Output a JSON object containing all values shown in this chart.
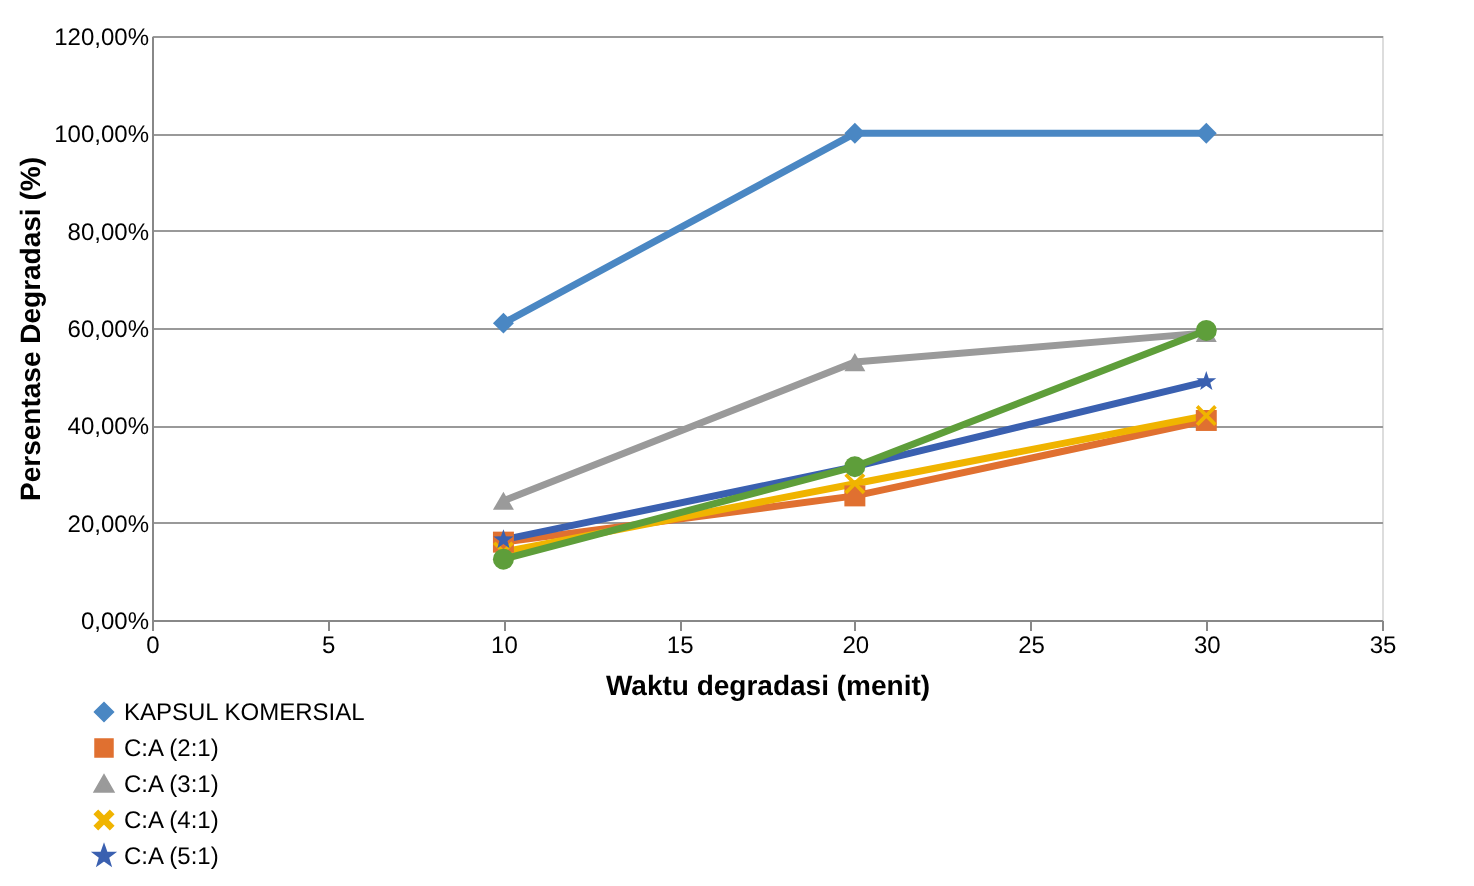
{
  "chart_data": {
    "type": "line",
    "xlabel": "Waktu degradasi (menit)",
    "ylabel": "Persentase Degradasi (%)",
    "x": [
      10,
      20,
      30
    ],
    "series": [
      {
        "name": "KAPSUL KOMERSIAL",
        "color": "#4a87c3",
        "marker": "diamond",
        "values": [
          61,
          100,
          100
        ]
      },
      {
        "name": "C:A (2:1)",
        "color": "#e07030",
        "marker": "square",
        "values": [
          16,
          25.5,
          41
        ]
      },
      {
        "name": "C:A (3:1)",
        "color": "#9a9a9a",
        "marker": "triangle",
        "values": [
          24.5,
          53,
          59
        ]
      },
      {
        "name": "C:A (4:1)",
        "color": "#f0b400",
        "marker": "cross",
        "values": [
          14,
          28,
          42
        ]
      },
      {
        "name": "C:A (5:1)",
        "color": "#3a60b0",
        "marker": "star",
        "values": [
          16.5,
          31.5,
          49
        ]
      },
      {
        "color": "#5e9e3a",
        "marker": "circle",
        "values": [
          12.5,
          31.5,
          59.5
        ]
      }
    ],
    "xlim": [
      0,
      35
    ],
    "xticks": [
      0,
      5,
      10,
      15,
      20,
      25,
      30,
      35
    ],
    "ylim": [
      0,
      120
    ],
    "yticks": [
      {
        "value": 0,
        "label": "0,00%"
      },
      {
        "value": 20,
        "label": "20,00%"
      },
      {
        "value": 40,
        "label": "40,00%"
      },
      {
        "value": 60,
        "label": "60,00%"
      },
      {
        "value": 80,
        "label": "80,00%"
      },
      {
        "value": 100,
        "label": "100,00%"
      },
      {
        "value": 120,
        "label": "120,00%"
      }
    ],
    "grid": "y",
    "legend": "bottom left",
    "line_style": "solid"
  }
}
